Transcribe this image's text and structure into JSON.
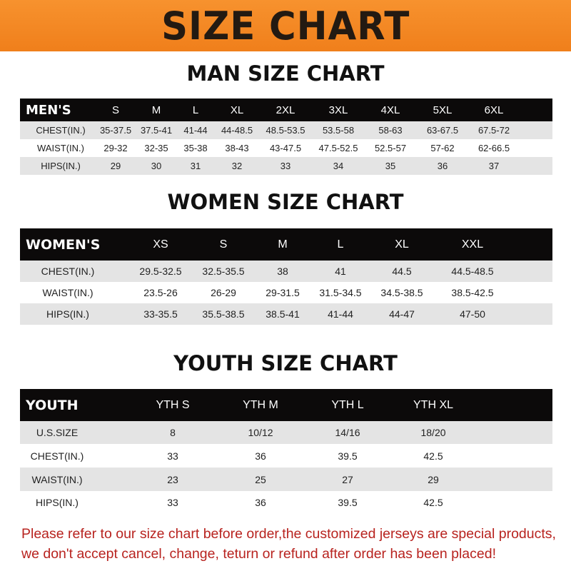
{
  "banner": {
    "title": "SIZE CHART",
    "color": "#f28424"
  },
  "men": {
    "title": "MAN SIZE CHART",
    "header": [
      "MEN'S",
      "S",
      "M",
      "L",
      "XL",
      "2XL",
      "3XL",
      "4XL",
      "5XL",
      "6XL"
    ],
    "rows": [
      [
        "CHEST(IN.)",
        "35-37.5",
        "37.5-41",
        "41-44",
        "44-48.5",
        "48.5-53.5",
        "53.5-58",
        "58-63",
        "63-67.5",
        "67.5-72"
      ],
      [
        "WAIST(IN.)",
        "29-32",
        "32-35",
        "35-38",
        "38-43",
        "43-47.5",
        "47.5-52.5",
        "52.5-57",
        "57-62",
        "62-66.5"
      ],
      [
        "HIPS(IN.)",
        "29",
        "30",
        "31",
        "32",
        "33",
        "34",
        "35",
        "36",
        "37"
      ]
    ]
  },
  "women": {
    "title": "WOMEN SIZE CHART",
    "header": [
      "WOMEN'S",
      "XS",
      "S",
      "M",
      "L",
      "XL",
      "XXL"
    ],
    "rows": [
      [
        "CHEST(IN.)",
        "29.5-32.5",
        "32.5-35.5",
        "38",
        "41",
        "44.5",
        "44.5-48.5"
      ],
      [
        "WAIST(IN.)",
        "23.5-26",
        "26-29",
        "29-31.5",
        "31.5-34.5",
        "34.5-38.5",
        "38.5-42.5"
      ],
      [
        "HIPS(IN.)",
        "33-35.5",
        "35.5-38.5",
        "38.5-41",
        "41-44",
        "44-47",
        "47-50"
      ]
    ]
  },
  "youth": {
    "title": "YOUTH SIZE CHART",
    "header": [
      "YOUTH",
      "YTH S",
      "YTH M",
      "YTH L",
      "YTH XL"
    ],
    "rows": [
      [
        "U.S.SIZE",
        "8",
        "10/12",
        "14/16",
        "18/20"
      ],
      [
        "CHEST(IN.)",
        "33",
        "36",
        "39.5",
        "42.5"
      ],
      [
        "WAIST(IN.)",
        "23",
        "25",
        "27",
        "29"
      ],
      [
        "HIPS(IN.)",
        "33",
        "36",
        "39.5",
        "42.5"
      ]
    ]
  },
  "notice": {
    "line1": "Please refer to our size chart before order,the customized jerseys are special products,",
    "line2": "we don't accept cancel, change, teturn or refund after order has been placed!",
    "color": "#b8231f"
  }
}
